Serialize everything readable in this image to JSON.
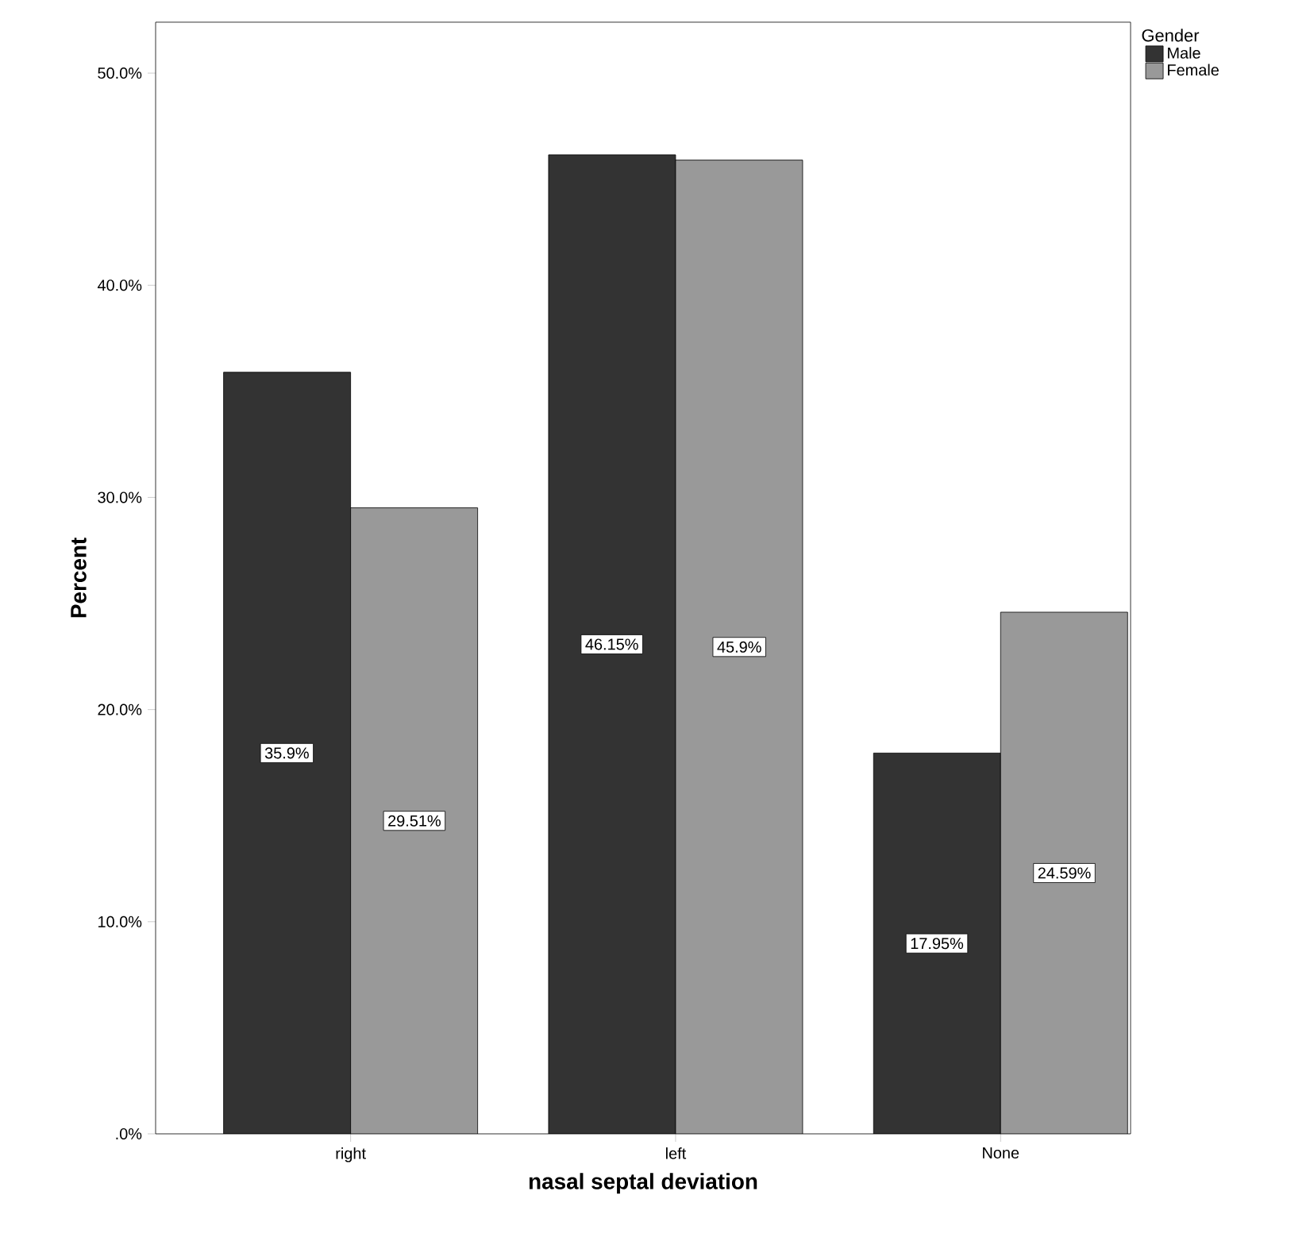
{
  "chart_data": {
    "type": "bar",
    "xlabel": "nasal septal deviation",
    "ylabel": "Percent",
    "legend_title": "Gender",
    "legend": "top right",
    "categories": [
      "right",
      "left",
      "None"
    ],
    "series": [
      {
        "name": "Male",
        "color": "#333333",
        "values": [
          35.9,
          46.15,
          17.95
        ],
        "value_labels": [
          "35.9%",
          "46.15%",
          "17.95%"
        ]
      },
      {
        "name": "Female",
        "color": "#999999",
        "values": [
          29.51,
          45.9,
          24.59
        ],
        "value_labels": [
          "29.51%",
          "45.9%",
          "24.59%"
        ]
      }
    ],
    "ylim": [
      0,
      52.4
    ],
    "yticks": [
      {
        "value": 0,
        "label": ".0%"
      },
      {
        "value": 10,
        "label": "10.0%"
      },
      {
        "value": 20,
        "label": "20.0%"
      },
      {
        "value": 30,
        "label": "30.0%"
      },
      {
        "value": 40,
        "label": "40.0%"
      },
      {
        "value": 50,
        "label": "50.0%"
      }
    ]
  }
}
